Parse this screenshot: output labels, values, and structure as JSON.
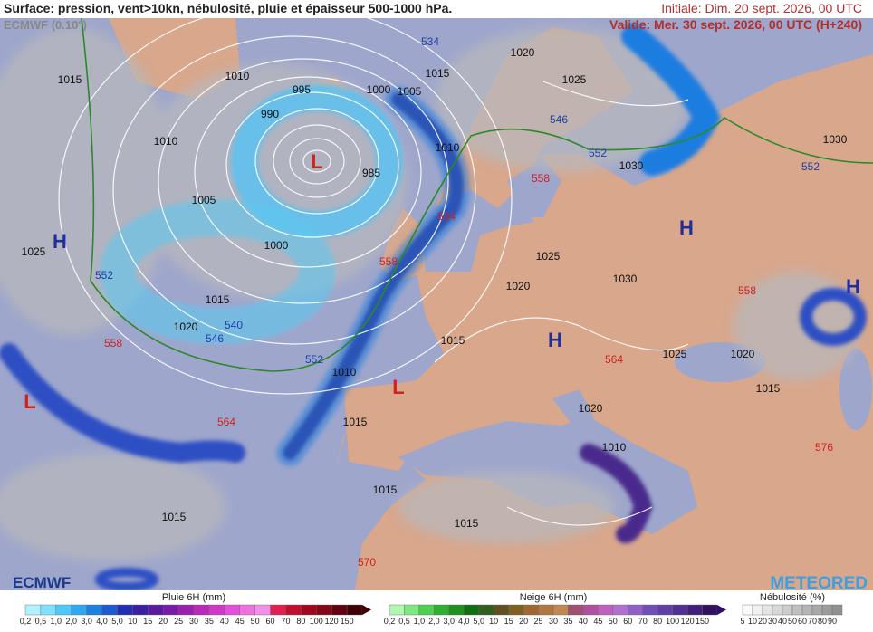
{
  "header": {
    "title": "Surface: pression, vent>10kn, nébulosité, pluie et épaisseur 500-1000 hPa.",
    "model": "ECMWF (0.10°)",
    "initial": "Initiale: Dim. 20 sept. 2026, 00 UTC",
    "valid": "Valide: Mer. 30 sept. 2026, 00 UTC (H+240)"
  },
  "map": {
    "pressure_labels": [
      "1015",
      "1010",
      "995",
      "990",
      "1000",
      "1005",
      "1015",
      "1010",
      "1005",
      "985",
      "1000",
      "1025",
      "1015",
      "1020",
      "1010",
      "1015",
      "1015",
      "1015",
      "1015",
      "1015",
      "1020",
      "1025",
      "1030",
      "1020",
      "1025",
      "1020",
      "1015",
      "1010",
      "1020",
      "1025",
      "1030",
      "1030",
      "1010"
    ],
    "thickness_blue": [
      "534",
      "546",
      "552",
      "552",
      "552",
      "540",
      "546",
      "552"
    ],
    "thickness_red": [
      "558",
      "564",
      "570",
      "564",
      "558",
      "576",
      "558",
      "534",
      "558"
    ],
    "highs": [
      "H",
      "H",
      "H",
      "H"
    ],
    "lows": [
      "L",
      "L",
      "L"
    ]
  },
  "legend": {
    "rain": {
      "title": "Pluie 6H (mm)",
      "ticks": [
        "0,2",
        "0,5",
        "1,0",
        "2,0",
        "3,0",
        "4,0",
        "5,0",
        "10",
        "15",
        "20",
        "25",
        "30",
        "35",
        "40",
        "45",
        "50",
        "60",
        "70",
        "80",
        "100",
        "120",
        "150"
      ]
    },
    "snow": {
      "title": "Neige 6H (mm)",
      "ticks": [
        "0,2",
        "0,5",
        "1,0",
        "2,0",
        "3,0",
        "4,0",
        "5,0",
        "10",
        "15",
        "20",
        "25",
        "30",
        "35",
        "40",
        "45",
        "50",
        "60",
        "70",
        "80",
        "100",
        "120",
        "150"
      ]
    },
    "cloud": {
      "title": "Nébulosité (%)",
      "ticks": [
        "5",
        "10",
        "20",
        "30",
        "40",
        "50",
        "60",
        "70",
        "80",
        "90"
      ]
    }
  },
  "logos": {
    "left": "ECMWF",
    "right": "METEORED"
  }
}
